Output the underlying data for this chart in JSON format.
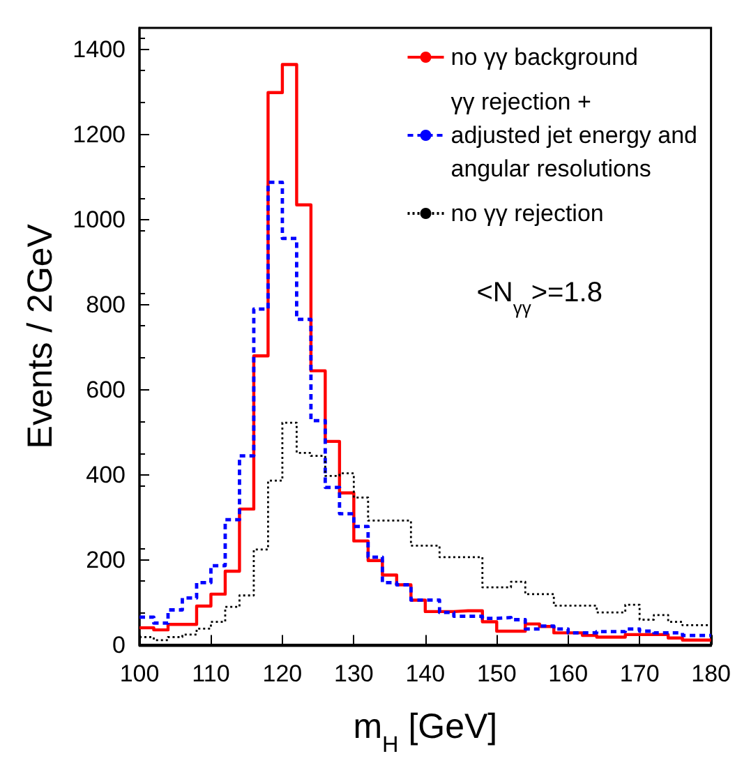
{
  "chart_data": {
    "type": "histogram",
    "xlabel": "m$_{H}$ [GeV]",
    "ylabel": "Events / 2GeV",
    "bins": [
      100,
      102,
      104,
      106,
      108,
      110,
      112,
      114,
      116,
      118,
      120,
      122,
      124,
      126,
      128,
      130,
      132,
      134,
      136,
      138,
      140,
      142,
      144,
      146,
      148,
      150,
      152,
      154,
      156,
      158,
      160,
      162,
      164,
      166,
      168,
      170,
      172,
      174,
      176,
      178,
      180
    ],
    "series": [
      {
        "name": "no γγ background",
        "color": "#ff0000",
        "line_style": "solid",
        "values": [
          40,
          35,
          48,
          48,
          91,
          119,
          173,
          319,
          679,
          1298,
          1364,
          1034,
          644,
          478,
          357,
          244,
          198,
          164,
          141,
          105,
          78,
          78,
          80,
          80,
          54,
          32,
          32,
          49,
          43,
          28,
          28,
          22,
          18,
          18,
          24,
          24,
          24,
          16,
          11,
          11
        ]
      },
      {
        "name": "γγ rejection + adjusted jet energy and angular resolutions",
        "color": "#0000ff",
        "line_style": "dashed",
        "values": [
          65,
          51,
          82,
          110,
          146,
          186,
          294,
          444,
          789,
          1087,
          955,
          765,
          527,
          370,
          308,
          278,
          206,
          146,
          141,
          105,
          105,
          76,
          67,
          67,
          62,
          64,
          59,
          37,
          44,
          37,
          28,
          28,
          31,
          31,
          37,
          32,
          28,
          28,
          22,
          22
        ]
      },
      {
        "name": "no γγ rejection",
        "color": "#000000",
        "line_style": "dotted",
        "values": [
          18,
          11,
          18,
          24,
          38,
          54,
          89,
          116,
          224,
          386,
          522,
          451,
          444,
          397,
          403,
          346,
          292,
          292,
          292,
          233,
          233,
          206,
          206,
          206,
          135,
          135,
          148,
          119,
          119,
          92,
          92,
          92,
          76,
          76,
          94,
          59,
          70,
          54,
          46,
          46
        ]
      }
    ],
    "xlim": [
      100,
      180
    ],
    "xticks": [
      100,
      110,
      120,
      130,
      140,
      150,
      160,
      170,
      180
    ],
    "ylim": [
      0,
      1450
    ],
    "yticks": [
      0,
      200,
      400,
      600,
      800,
      1000,
      1200,
      1400
    ],
    "legend": "top right",
    "grid": false,
    "annotations": [
      "<N$_{γγ}$>=1.8"
    ]
  }
}
